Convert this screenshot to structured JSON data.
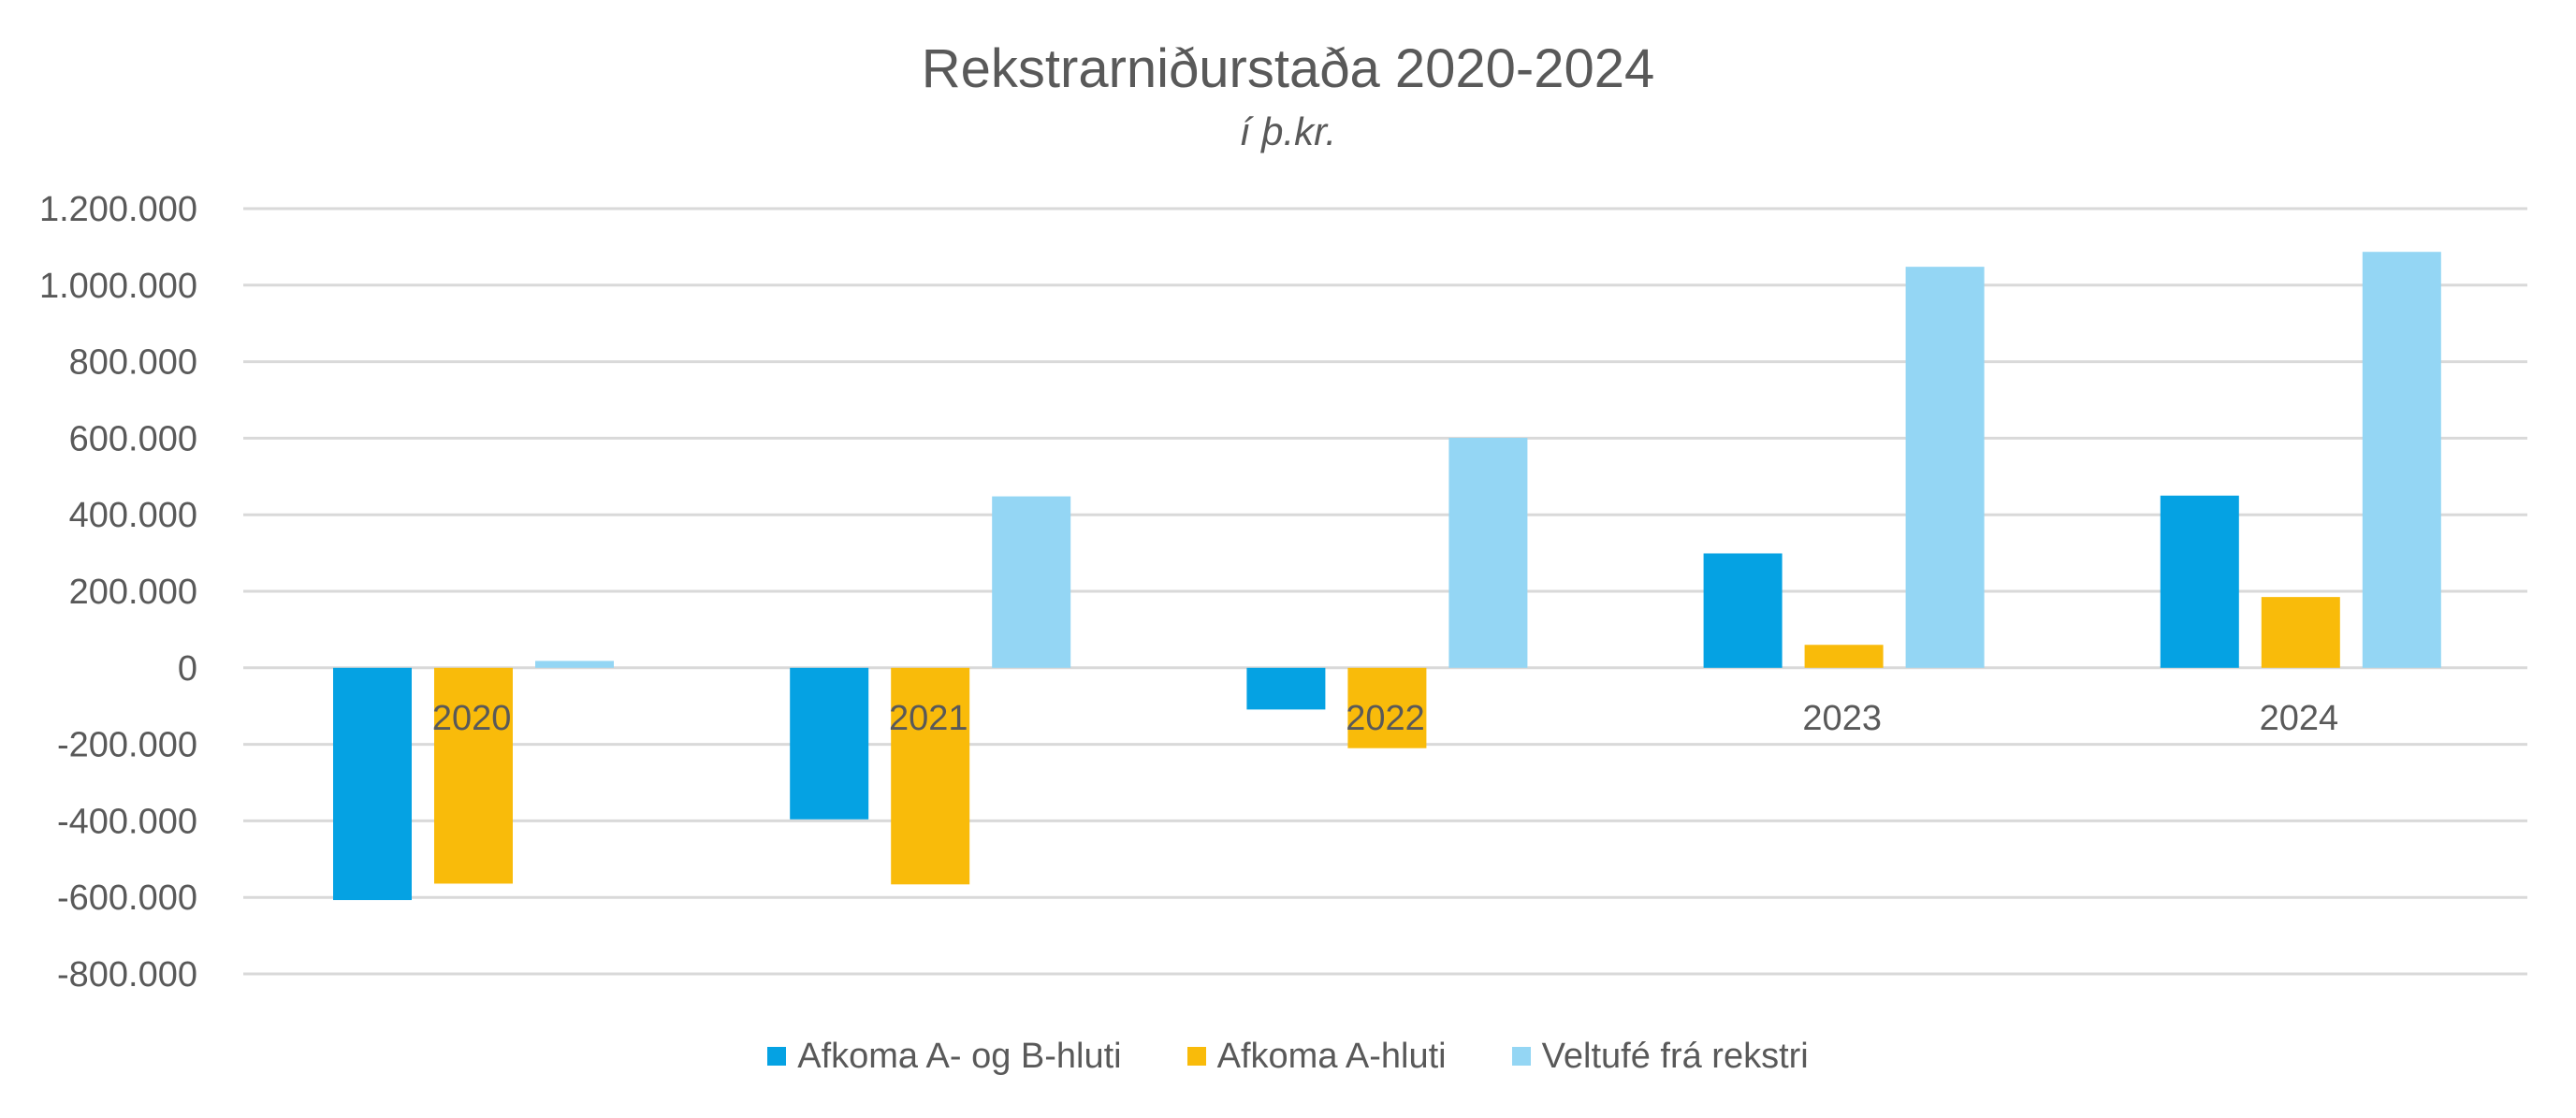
{
  "chart_data": {
    "type": "bar",
    "title": "Rekstrarniðurstaða 2020-2024",
    "subtitle": "í þ.kr.",
    "categories": [
      "2020",
      "2021",
      "2022",
      "2023",
      "2024"
    ],
    "series": [
      {
        "name": "Afkoma A- og B-hluti",
        "color": "#05a2e3",
        "values": [
          -607000,
          -396000,
          -109000,
          299000,
          450000
        ]
      },
      {
        "name": "Afkoma A-hluti",
        "color": "#f9bb0a",
        "values": [
          -564000,
          -566000,
          -210000,
          60000,
          185000
        ]
      },
      {
        "name": "Veltufé frá rekstri",
        "color": "#94d6f4",
        "values": [
          18000,
          448000,
          601000,
          1048000,
          1087000
        ]
      }
    ],
    "ylim": [
      -800000,
      1200000
    ],
    "yticks": [
      1200000,
      1000000,
      800000,
      600000,
      400000,
      200000,
      0,
      -200000,
      -400000,
      -600000,
      -800000
    ],
    "ytick_labels": [
      "1.200.000",
      "1.000.000",
      "800.000",
      "600.000",
      "400.000",
      "200.000",
      "0",
      "-200.000",
      "-400.000",
      "-600.000",
      "-800.000"
    ],
    "grid": true,
    "legend_position": "bottom",
    "xlabel": "",
    "ylabel": ""
  }
}
